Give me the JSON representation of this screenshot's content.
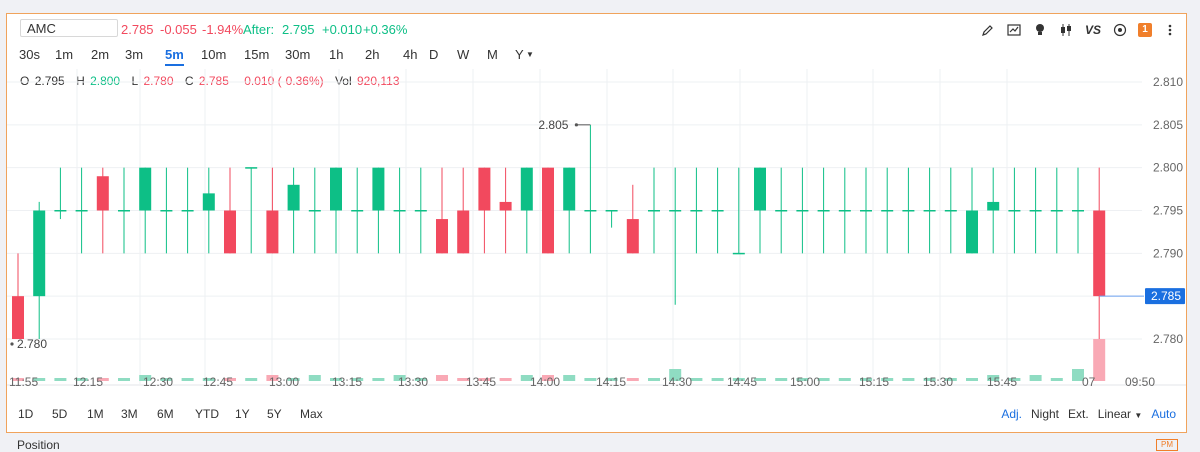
{
  "quote": {
    "symbol": "AMC",
    "last": "2.785",
    "change": "-0.055",
    "change_pct": "-1.94%",
    "after_label": "After:",
    "after_price": "2.795",
    "after_change": "+0.010",
    "after_pct": "+0.36%"
  },
  "toolbar": {
    "vs_label": "VS",
    "badge": "1",
    "icons": [
      "pencil-icon",
      "chart-settings-icon",
      "bulb-icon",
      "candle-type-icon",
      "vs-compare-icon",
      "target-icon",
      "badge-icon",
      "more-icon"
    ]
  },
  "intervals": [
    {
      "label": "30s",
      "active": false
    },
    {
      "label": "1m",
      "active": false
    },
    {
      "label": "2m",
      "active": false
    },
    {
      "label": "3m",
      "active": false
    },
    {
      "label": "5m",
      "active": true
    },
    {
      "label": "10m",
      "active": false
    },
    {
      "label": "15m",
      "active": false
    },
    {
      "label": "30m",
      "active": false
    },
    {
      "label": "1h",
      "active": false
    },
    {
      "label": "2h",
      "active": false
    },
    {
      "label": "4h",
      "active": false
    },
    {
      "label": "D",
      "active": false
    },
    {
      "label": "W",
      "active": false
    },
    {
      "label": "M",
      "active": false
    },
    {
      "label": "Y",
      "active": false
    }
  ],
  "ohlc": {
    "o_label": "O",
    "o": "2.795",
    "h_label": "H",
    "h": "2.800",
    "l_label": "L",
    "l": "2.780",
    "c_label": "C",
    "c": "2.785",
    "chg": "-0.010 (-0.36%)",
    "vol_label": "Vol",
    "vol": "920,113"
  },
  "chart_data": {
    "type": "candlestick",
    "ylim": [
      2.776,
      2.811
    ],
    "y_ticks": [
      "2.810",
      "2.805",
      "2.800",
      "2.795",
      "2.790",
      "2.785",
      "2.780"
    ],
    "x_tick_labels": [
      "11:55",
      "12:15",
      "12:30",
      "12:45",
      "13:00",
      "13:15",
      "13:30",
      "13:45",
      "14:00",
      "14:15",
      "14:30",
      "14:45",
      "15:00",
      "15:15",
      "15:30",
      "15:45",
      "07",
      "09:50"
    ],
    "candles": [
      {
        "o": 2.785,
        "h": 2.79,
        "l": 2.78,
        "c": 2.78,
        "v": 1
      },
      {
        "o": 2.785,
        "h": 2.796,
        "l": 2.78,
        "c": 2.795,
        "v": 1
      },
      {
        "o": 2.795,
        "h": 2.8,
        "l": 2.794,
        "c": 2.795,
        "v": 1
      },
      {
        "o": 2.795,
        "h": 2.8,
        "l": 2.79,
        "c": 2.795,
        "v": 1
      },
      {
        "o": 2.799,
        "h": 2.8,
        "l": 2.79,
        "c": 2.795,
        "v": 1
      },
      {
        "o": 2.795,
        "h": 2.8,
        "l": 2.79,
        "c": 2.795,
        "v": 1
      },
      {
        "o": 2.795,
        "h": 2.8,
        "l": 2.79,
        "c": 2.8,
        "v": 2
      },
      {
        "o": 2.795,
        "h": 2.8,
        "l": 2.79,
        "c": 2.795,
        "v": 1
      },
      {
        "o": 2.795,
        "h": 2.8,
        "l": 2.79,
        "c": 2.795,
        "v": 1
      },
      {
        "o": 2.795,
        "h": 2.8,
        "l": 2.79,
        "c": 2.797,
        "v": 1
      },
      {
        "o": 2.795,
        "h": 2.8,
        "l": 2.79,
        "c": 2.79,
        "v": 1
      },
      {
        "o": 2.8,
        "h": 2.8,
        "l": 2.79,
        "c": 2.8,
        "v": 1
      },
      {
        "o": 2.795,
        "h": 2.8,
        "l": 2.79,
        "c": 2.79,
        "v": 2
      },
      {
        "o": 2.795,
        "h": 2.8,
        "l": 2.79,
        "c": 2.798,
        "v": 1
      },
      {
        "o": 2.795,
        "h": 2.8,
        "l": 2.79,
        "c": 2.795,
        "v": 2
      },
      {
        "o": 2.795,
        "h": 2.8,
        "l": 2.79,
        "c": 2.8,
        "v": 1
      },
      {
        "o": 2.795,
        "h": 2.8,
        "l": 2.79,
        "c": 2.795,
        "v": 1
      },
      {
        "o": 2.795,
        "h": 2.8,
        "l": 2.79,
        "c": 2.8,
        "v": 1
      },
      {
        "o": 2.795,
        "h": 2.8,
        "l": 2.79,
        "c": 2.795,
        "v": 2
      },
      {
        "o": 2.795,
        "h": 2.8,
        "l": 2.79,
        "c": 2.795,
        "v": 1
      },
      {
        "o": 2.794,
        "h": 2.8,
        "l": 2.79,
        "c": 2.79,
        "v": 2
      },
      {
        "o": 2.795,
        "h": 2.8,
        "l": 2.79,
        "c": 2.79,
        "v": 1
      },
      {
        "o": 2.8,
        "h": 2.8,
        "l": 2.79,
        "c": 2.795,
        "v": 1
      },
      {
        "o": 2.796,
        "h": 2.8,
        "l": 2.79,
        "c": 2.795,
        "v": 1
      },
      {
        "o": 2.795,
        "h": 2.8,
        "l": 2.79,
        "c": 2.8,
        "v": 2
      },
      {
        "o": 2.8,
        "h": 2.8,
        "l": 2.79,
        "c": 2.79,
        "v": 2
      },
      {
        "o": 2.795,
        "h": 2.8,
        "l": 2.79,
        "c": 2.8,
        "v": 2
      },
      {
        "o": 2.795,
        "h": 2.805,
        "l": 2.79,
        "c": 2.795,
        "v": 1
      },
      {
        "o": 2.795,
        "h": 2.795,
        "l": 2.793,
        "c": 2.795,
        "v": 1
      },
      {
        "o": 2.794,
        "h": 2.798,
        "l": 2.79,
        "c": 2.79,
        "v": 1
      },
      {
        "o": 2.795,
        "h": 2.8,
        "l": 2.79,
        "c": 2.795,
        "v": 1
      },
      {
        "o": 2.795,
        "h": 2.8,
        "l": 2.784,
        "c": 2.795,
        "v": 4
      },
      {
        "o": 2.795,
        "h": 2.8,
        "l": 2.79,
        "c": 2.795,
        "v": 1
      },
      {
        "o": 2.795,
        "h": 2.8,
        "l": 2.79,
        "c": 2.795,
        "v": 1
      },
      {
        "o": 2.79,
        "h": 2.8,
        "l": 2.79,
        "c": 2.79,
        "v": 1
      },
      {
        "o": 2.795,
        "h": 2.8,
        "l": 2.79,
        "c": 2.8,
        "v": 1
      },
      {
        "o": 2.795,
        "h": 2.8,
        "l": 2.79,
        "c": 2.795,
        "v": 1
      },
      {
        "o": 2.795,
        "h": 2.8,
        "l": 2.79,
        "c": 2.795,
        "v": 1
      },
      {
        "o": 2.795,
        "h": 2.8,
        "l": 2.79,
        "c": 2.795,
        "v": 1
      },
      {
        "o": 2.795,
        "h": 2.8,
        "l": 2.79,
        "c": 2.795,
        "v": 1
      },
      {
        "o": 2.795,
        "h": 2.8,
        "l": 2.79,
        "c": 2.795,
        "v": 1
      },
      {
        "o": 2.795,
        "h": 2.8,
        "l": 2.79,
        "c": 2.795,
        "v": 1
      },
      {
        "o": 2.795,
        "h": 2.8,
        "l": 2.79,
        "c": 2.795,
        "v": 1
      },
      {
        "o": 2.795,
        "h": 2.8,
        "l": 2.79,
        "c": 2.795,
        "v": 1
      },
      {
        "o": 2.795,
        "h": 2.8,
        "l": 2.79,
        "c": 2.795,
        "v": 1
      },
      {
        "o": 2.79,
        "h": 2.8,
        "l": 2.79,
        "c": 2.795,
        "v": 1
      },
      {
        "o": 2.795,
        "h": 2.8,
        "l": 2.79,
        "c": 2.796,
        "v": 2
      },
      {
        "o": 2.795,
        "h": 2.8,
        "l": 2.79,
        "c": 2.795,
        "v": 1
      },
      {
        "o": 2.795,
        "h": 2.8,
        "l": 2.79,
        "c": 2.795,
        "v": 2
      },
      {
        "o": 2.795,
        "h": 2.8,
        "l": 2.79,
        "c": 2.795,
        "v": 1
      },
      {
        "o": 2.795,
        "h": 2.8,
        "l": 2.79,
        "c": 2.795,
        "v": 4
      },
      {
        "o": 2.795,
        "h": 2.8,
        "l": 2.78,
        "c": 2.785,
        "v": 14
      }
    ],
    "annotations": [
      {
        "label": "2.805",
        "value": 2.805
      },
      {
        "label": "2.780",
        "value": 2.78
      }
    ],
    "last_price": {
      "label": "2.785",
      "value": 2.785
    },
    "colors": {
      "up": "#0dbf86",
      "down": "#f2495e",
      "grid": "#eef0f3",
      "last_line": "#6aa0f0",
      "last_tag": "#1a6fe0"
    }
  },
  "ranges": [
    "1D",
    "5D",
    "1M",
    "3M",
    "6M",
    "YTD",
    "1Y",
    "5Y",
    "Max"
  ],
  "options": {
    "adj": "Adj.",
    "night": "Night",
    "ext": "Ext.",
    "scale": "Linear",
    "auto": "Auto"
  },
  "position_tab": "Position",
  "pm_badge": "PM"
}
